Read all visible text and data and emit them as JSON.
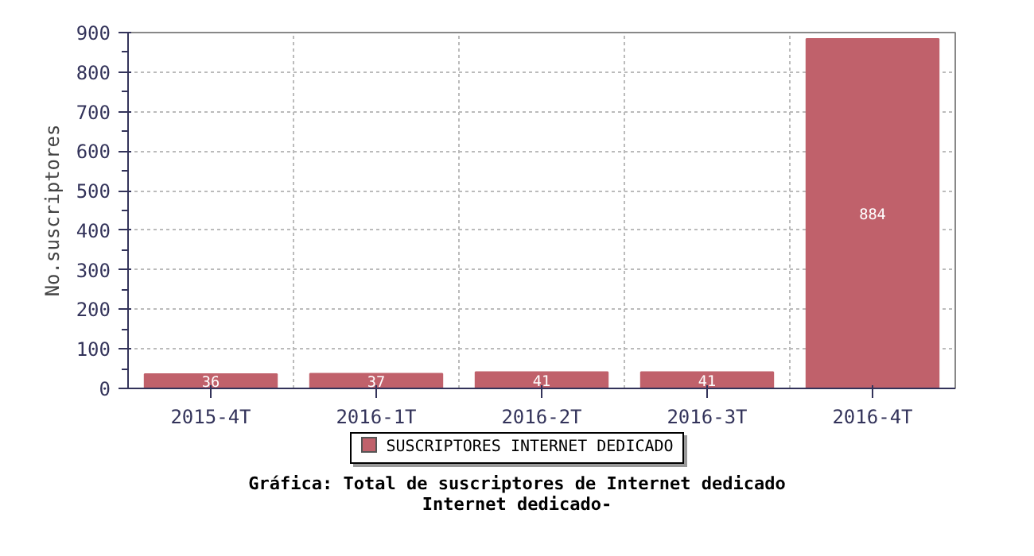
{
  "chart_data": {
    "type": "bar",
    "title": "Gráfica: Total de suscriptores de Internet dedicado",
    "subtitle": "Internet dedicado-",
    "ylabel": "No.suscriptores",
    "categories": [
      "2015-4T",
      "2016-1T",
      "2016-2T",
      "2016-3T",
      "2016-4T"
    ],
    "series": [
      {
        "name": "SUSCRIPTORES INTERNET DEDICADO",
        "color": "#c0616b",
        "values": [
          36,
          37,
          41,
          41,
          884
        ]
      }
    ],
    "ylim": [
      0,
      900
    ],
    "yticks": [
      0,
      100,
      200,
      300,
      400,
      500,
      600,
      700,
      800,
      900
    ],
    "grid": true,
    "legend": "bottom",
    "data_labels": true
  }
}
